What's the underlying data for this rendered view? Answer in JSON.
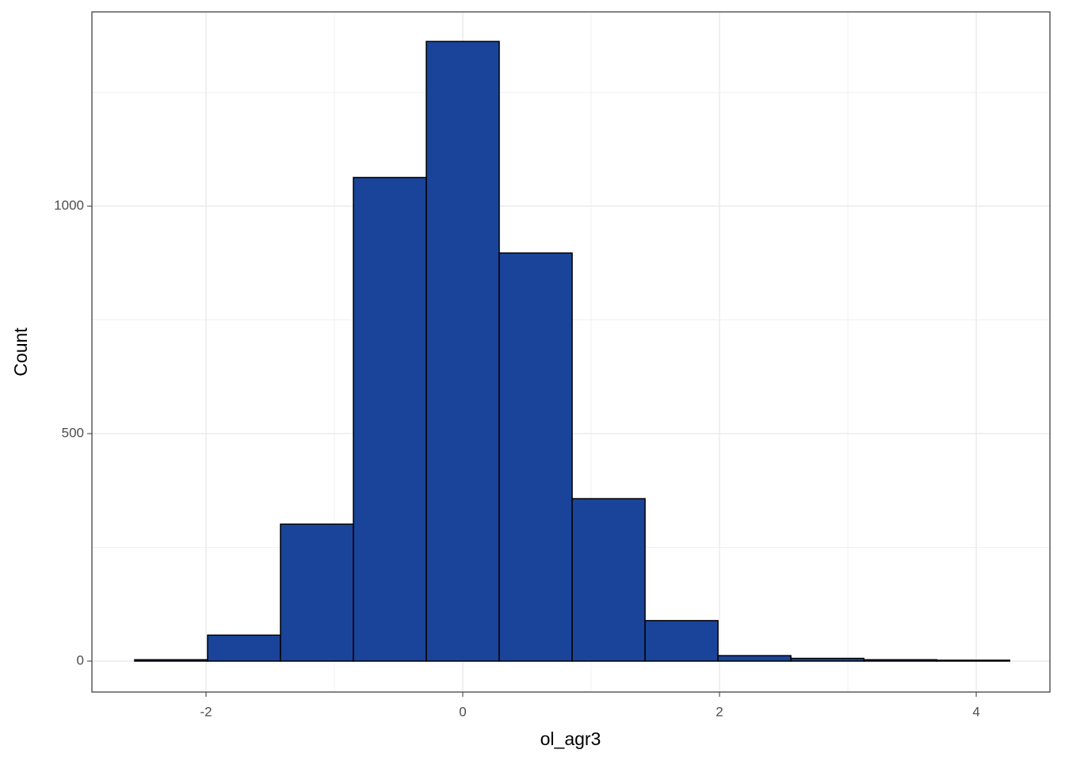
{
  "chart_data": {
    "type": "histogram",
    "x_label": "ol_agr3",
    "y_label": "Count",
    "bins": [
      -2.556,
      -1.988,
      -1.42,
      -0.852,
      -0.284,
      0.284,
      0.852,
      1.42,
      1.988,
      2.556,
      3.124,
      3.692,
      4.26
    ],
    "values": [
      3,
      57,
      301,
      1063,
      1362,
      897,
      357,
      89,
      12,
      6,
      3,
      2
    ],
    "color": "#1a4499",
    "edge_color": "#000000",
    "xlim": [
      -2.889,
      4.574
    ],
    "ylim": [
      -68,
      1427
    ],
    "xticks": [
      -2,
      0,
      2,
      4
    ],
    "yticks": [
      0,
      500,
      1000
    ],
    "x_minor_grid": [
      -1,
      1,
      3
    ],
    "y_minor_grid": [
      250,
      750,
      1250
    ],
    "grid": true
  }
}
